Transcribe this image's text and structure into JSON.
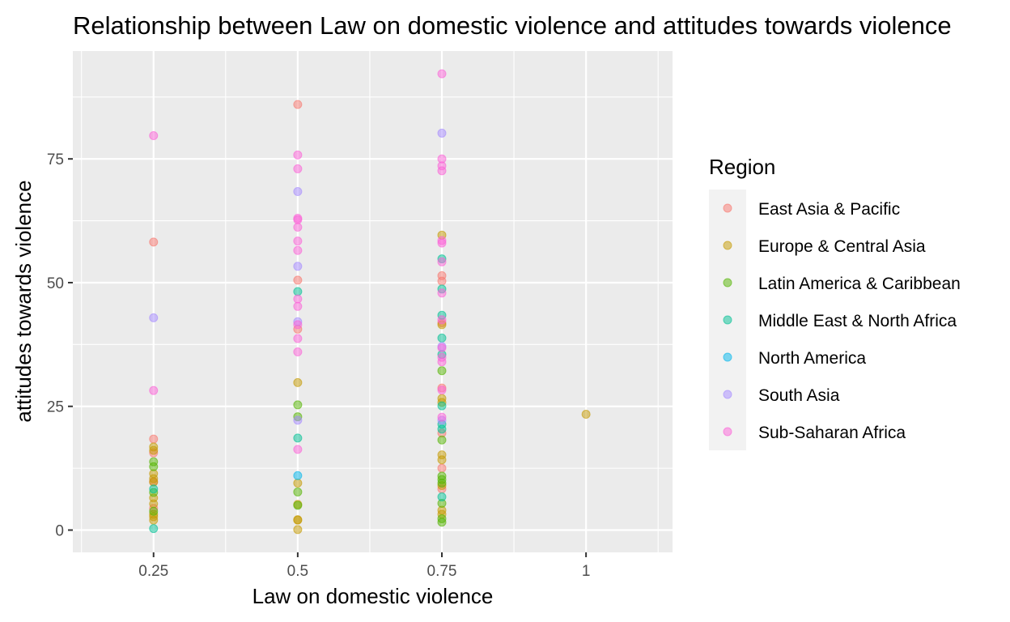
{
  "chart_data": {
    "type": "scatter",
    "title": "Relationship between Law on domestic violence and attitudes towards violence",
    "xlabel": "Law on domestic violence",
    "ylabel": "attitudes towards violence",
    "xlim": [
      0.11,
      1.15
    ],
    "ylim": [
      -4.5,
      96.8
    ],
    "x_ticks": [
      0.25,
      0.5,
      0.75,
      1.0
    ],
    "x_tick_labels": [
      "0.25",
      "0.5",
      "0.75",
      "1"
    ],
    "y_ticks": [
      0,
      25,
      50,
      75
    ],
    "y_tick_labels": [
      "0",
      "25",
      "50",
      "75"
    ],
    "grid": true,
    "panel_background": "#ebebeb",
    "grid_color": "#ffffff",
    "legend": {
      "title": "Region",
      "position": "right"
    },
    "series": [
      {
        "name": "East Asia & Pacific",
        "color": "#f8766d",
        "points": [
          [
            0.25,
            58.2
          ],
          [
            0.25,
            18.4
          ],
          [
            0.25,
            15.6
          ],
          [
            0.25,
            9.8
          ],
          [
            0.25,
            4.4
          ],
          [
            0.5,
            86.0
          ],
          [
            0.5,
            50.5
          ],
          [
            0.5,
            40.6
          ],
          [
            0.75,
            51.4
          ],
          [
            0.75,
            50.3
          ],
          [
            0.75,
            41.9
          ],
          [
            0.75,
            28.7
          ],
          [
            0.75,
            19.6
          ],
          [
            0.75,
            12.5
          ],
          [
            0.75,
            8.3
          ]
        ]
      },
      {
        "name": "Europe & Central Asia",
        "color": "#c49a00",
        "points": [
          [
            0.25,
            16.8
          ],
          [
            0.25,
            16.1
          ],
          [
            0.25,
            11.4
          ],
          [
            0.25,
            10.4
          ],
          [
            0.25,
            9.7
          ],
          [
            0.25,
            6.5
          ],
          [
            0.25,
            5.3
          ],
          [
            0.25,
            3.2
          ],
          [
            0.25,
            2.7
          ],
          [
            0.25,
            2.0
          ],
          [
            0.5,
            29.8
          ],
          [
            0.5,
            9.5
          ],
          [
            0.5,
            5.2
          ],
          [
            0.5,
            2.1
          ],
          [
            0.5,
            2.0
          ],
          [
            0.5,
            0.1
          ],
          [
            0.75,
            59.6
          ],
          [
            0.75,
            41.5
          ],
          [
            0.75,
            26.6
          ],
          [
            0.75,
            25.8
          ],
          [
            0.75,
            15.2
          ],
          [
            0.75,
            14.2
          ],
          [
            0.75,
            9.0
          ],
          [
            0.75,
            4.0
          ],
          [
            0.75,
            3.2
          ],
          [
            1.0,
            23.4
          ]
        ]
      },
      {
        "name": "Latin America & Caribbean",
        "color": "#53b400",
        "points": [
          [
            0.25,
            13.8
          ],
          [
            0.25,
            12.8
          ],
          [
            0.25,
            7.6
          ],
          [
            0.25,
            3.8
          ],
          [
            0.5,
            25.3
          ],
          [
            0.5,
            22.9
          ],
          [
            0.5,
            7.7
          ],
          [
            0.5,
            5.0
          ],
          [
            0.75,
            32.2
          ],
          [
            0.75,
            18.2
          ],
          [
            0.75,
            10.9
          ],
          [
            0.75,
            10.2
          ],
          [
            0.75,
            9.5
          ],
          [
            0.75,
            5.4
          ],
          [
            0.75,
            2.3
          ],
          [
            0.75,
            1.6
          ]
        ]
      },
      {
        "name": "Middle East & North Africa",
        "color": "#00c094",
        "points": [
          [
            0.25,
            8.3
          ],
          [
            0.25,
            0.3
          ],
          [
            0.5,
            48.2
          ],
          [
            0.5,
            18.6
          ],
          [
            0.75,
            54.8
          ],
          [
            0.75,
            48.7
          ],
          [
            0.75,
            43.4
          ],
          [
            0.75,
            38.8
          ],
          [
            0.75,
            35.5
          ],
          [
            0.75,
            25.1
          ],
          [
            0.75,
            21.4
          ],
          [
            0.75,
            20.4
          ],
          [
            0.75,
            6.7
          ]
        ]
      },
      {
        "name": "North America",
        "color": "#00b6eb",
        "points": [
          [
            0.5,
            11.0
          ]
        ]
      },
      {
        "name": "South Asia",
        "color": "#a58aff",
        "points": [
          [
            0.25,
            42.9
          ],
          [
            0.5,
            68.4
          ],
          [
            0.5,
            53.3
          ],
          [
            0.5,
            42.1
          ],
          [
            0.5,
            22.2
          ],
          [
            0.75,
            80.2
          ],
          [
            0.75,
            37.1
          ],
          [
            0.75,
            22.2
          ]
        ]
      },
      {
        "name": "Sub-Saharan Africa",
        "color": "#fb61d7",
        "points": [
          [
            0.25,
            79.7
          ],
          [
            0.25,
            28.2
          ],
          [
            0.5,
            75.8
          ],
          [
            0.5,
            73.0
          ],
          [
            0.5,
            63.0
          ],
          [
            0.5,
            62.7
          ],
          [
            0.5,
            61.2
          ],
          [
            0.5,
            58.4
          ],
          [
            0.5,
            56.5
          ],
          [
            0.5,
            46.7
          ],
          [
            0.5,
            45.2
          ],
          [
            0.5,
            41.5
          ],
          [
            0.5,
            38.7
          ],
          [
            0.5,
            36.0
          ],
          [
            0.5,
            16.3
          ],
          [
            0.75,
            92.2
          ],
          [
            0.75,
            75.0
          ],
          [
            0.75,
            73.6
          ],
          [
            0.75,
            72.6
          ],
          [
            0.75,
            58.5
          ],
          [
            0.75,
            58.0
          ],
          [
            0.75,
            54.2
          ],
          [
            0.75,
            47.9
          ],
          [
            0.75,
            42.5
          ],
          [
            0.75,
            36.8
          ],
          [
            0.75,
            34.9
          ],
          [
            0.75,
            34.0
          ],
          [
            0.75,
            28.3
          ],
          [
            0.75,
            22.8
          ]
        ]
      }
    ]
  }
}
